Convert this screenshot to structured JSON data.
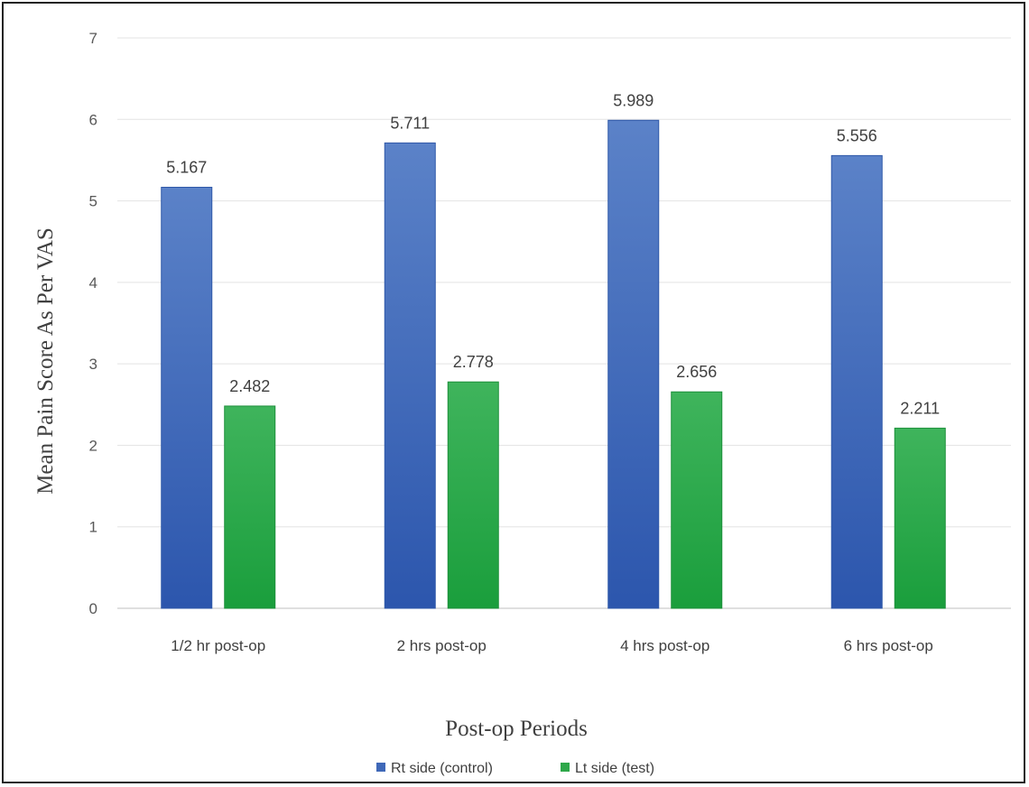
{
  "chart_data": {
    "type": "bar",
    "categories": [
      "1/2 hr post-op",
      "2 hrs post-op",
      "4 hrs post-op",
      "6 hrs post-op"
    ],
    "series": [
      {
        "name": "Rt side (control)",
        "values": [
          5.167,
          5.711,
          5.989,
          5.556
        ],
        "labels": [
          "5.167",
          "5.711",
          "5.989",
          "5.556"
        ],
        "color": "#4472c4"
      },
      {
        "name": "Lt side (test)",
        "values": [
          2.482,
          2.778,
          2.656,
          2.211
        ],
        "labels": [
          "2.482",
          "2.778",
          "2.656",
          "2.211"
        ],
        "color": "#2ea84a"
      }
    ],
    "title": "",
    "xlabel": "Post-op Periods",
    "ylabel": "Mean Pain Score As Per VAS",
    "ylim": [
      0,
      7
    ],
    "yticks": [
      "0",
      "1",
      "2",
      "3",
      "4",
      "5",
      "6",
      "7"
    ],
    "grid": true,
    "legend": "bottom"
  }
}
